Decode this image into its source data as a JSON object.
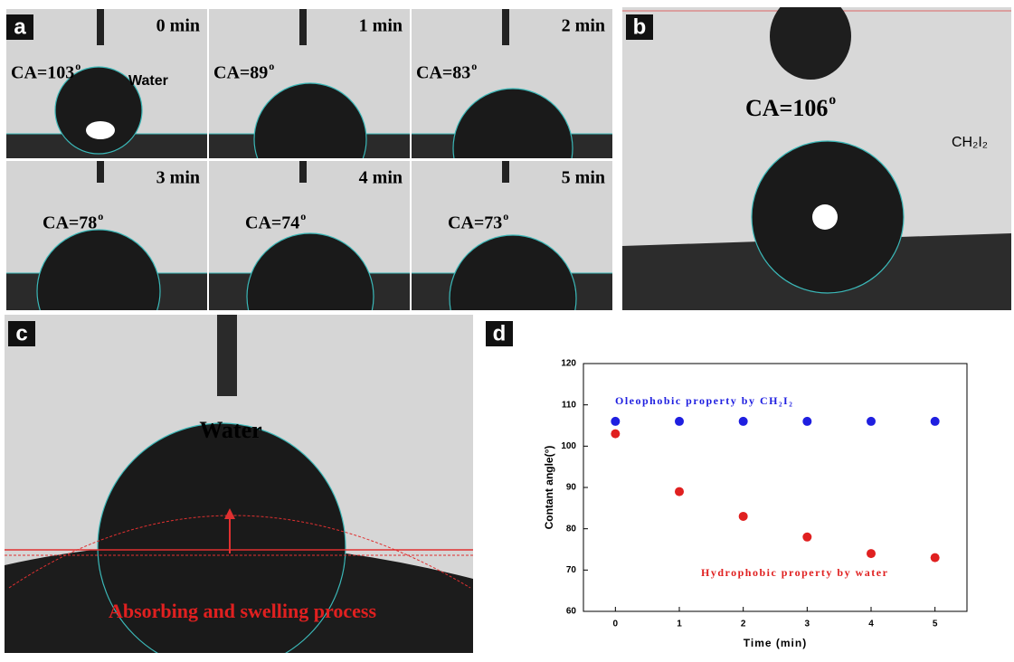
{
  "panel_a": {
    "letter": "a",
    "water_label": "Water",
    "degree_mark": "o",
    "tiles": [
      {
        "time": "0 min",
        "ca": "CA=103"
      },
      {
        "time": "1 min",
        "ca": "CA=89"
      },
      {
        "time": "2 min",
        "ca": "CA=83"
      },
      {
        "time": "3 min",
        "ca": "CA=78"
      },
      {
        "time": "4 min",
        "ca": "CA=74"
      },
      {
        "time": "5 min",
        "ca": "CA=73"
      }
    ]
  },
  "panel_b": {
    "letter": "b",
    "ca": "CA=106",
    "degree_mark": "o",
    "liquid": "CH₂I₂"
  },
  "panel_c": {
    "letter": "c",
    "liquid": "Water",
    "process": "Absorbing and swelling process"
  },
  "chart_data": {
    "type": "scatter",
    "letter": "d",
    "x_label": "Time (min)",
    "y_label": "Contant angle(°)",
    "x": [
      0,
      1,
      2,
      3,
      4,
      5
    ],
    "xlim": [
      -0.5,
      5.5
    ],
    "xticks": [
      0,
      1,
      2,
      3,
      4,
      5
    ],
    "ylim": [
      60,
      120
    ],
    "yticks": [
      60,
      70,
      80,
      90,
      100,
      110,
      120
    ],
    "series": [
      {
        "name": "Oleophobic property by CH₂I₂",
        "color": "#1f1fe0",
        "values": [
          106,
          106,
          106,
          106,
          106,
          106
        ]
      },
      {
        "name": "Hydrophobic property by water",
        "color": "#e02020",
        "values": [
          103,
          89,
          83,
          78,
          74,
          73
        ]
      }
    ]
  }
}
